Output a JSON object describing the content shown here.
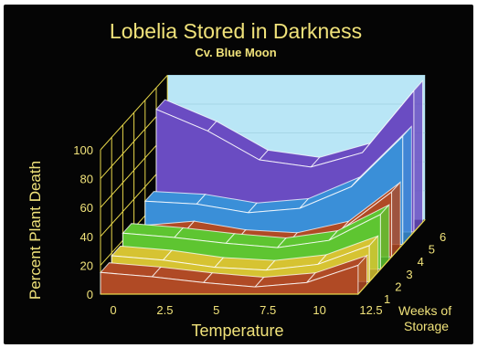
{
  "chart_data": {
    "type": "area",
    "title": "Lobelia Stored in Darkness",
    "subtitle": "Cv. Blue Moon",
    "xlabel": "Temperature",
    "ylabel": "Percent Plant Death",
    "zlabel_line1": "Weeks of",
    "zlabel_line2": "Storage",
    "x": [
      0,
      2.5,
      5,
      7.5,
      10,
      12.5
    ],
    "x_tick_labels": [
      "0",
      "2.5",
      "5",
      "7.5",
      "10",
      "12.5"
    ],
    "y_ticks": [
      "0",
      "20",
      "40",
      "60",
      "80",
      "100"
    ],
    "ylim": [
      0,
      100
    ],
    "z_tick_labels": [
      "1",
      "2",
      "3",
      "4",
      "5",
      "6"
    ],
    "series": [
      {
        "weeks": 1,
        "color": "#b04a25",
        "values": [
          15,
          12,
          8,
          5,
          8,
          20
        ]
      },
      {
        "weeks": 2,
        "color": "#d6c332",
        "values": [
          18,
          15,
          10,
          8,
          12,
          25
        ]
      },
      {
        "weeks": 3,
        "color": "#5ec531",
        "values": [
          25,
          22,
          18,
          15,
          20,
          38
        ]
      },
      {
        "weeks": 4,
        "color": "#b04a25",
        "values": [
          15,
          18,
          12,
          10,
          18,
          45
        ]
      },
      {
        "weeks": 5,
        "color": "#3a8fd8",
        "values": [
          30,
          28,
          22,
          25,
          40,
          75
        ]
      },
      {
        "weeks": 6,
        "color": "#6a4cc2",
        "values": [
          85,
          70,
          50,
          45,
          55,
          98
        ]
      }
    ],
    "grid": true
  }
}
